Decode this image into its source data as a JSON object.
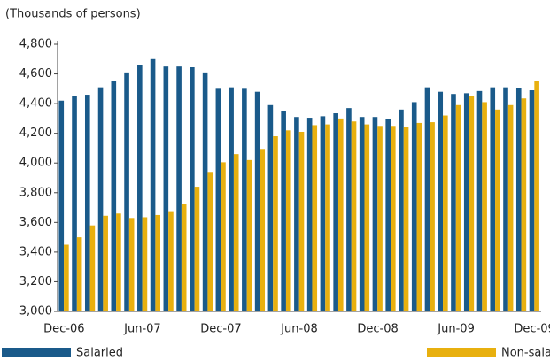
{
  "chart_data": {
    "type": "bar",
    "title": "(Thousands of persons)",
    "categories": [
      "Dec-06",
      null,
      null,
      null,
      null,
      null,
      "Jun-07",
      null,
      null,
      null,
      null,
      null,
      "Dec-07",
      null,
      null,
      null,
      null,
      null,
      "Jun-08",
      null,
      null,
      null,
      null,
      null,
      "Dec-08",
      null,
      null,
      null,
      null,
      null,
      "Jun-09",
      null,
      null,
      null,
      null,
      null,
      "Dec-09"
    ],
    "series": [
      {
        "name": "Salaried",
        "color": "#1a5a8a",
        "values": [
          4420,
          4450,
          4460,
          4510,
          4550,
          4610,
          4660,
          4700,
          4650,
          4650,
          4645,
          4610,
          4500,
          4510,
          4500,
          4480,
          4390,
          4350,
          4310,
          4305,
          4315,
          4335,
          4370,
          4310,
          4310,
          4295,
          4360,
          4410,
          4510,
          4480,
          4465,
          4470,
          4485,
          4510,
          4510,
          4505,
          4490
        ]
      },
      {
        "name": "Non-salaried",
        "color": "#e8b00f",
        "values": [
          3450,
          3500,
          3580,
          3645,
          3660,
          3630,
          3635,
          3650,
          3670,
          3725,
          3840,
          3940,
          4005,
          4060,
          4020,
          4095,
          4180,
          4220,
          4210,
          4255,
          4260,
          4300,
          4280,
          4260,
          4250,
          4250,
          4240,
          4270,
          4275,
          4320,
          4390,
          4450,
          4410,
          4360,
          4390,
          4435,
          4555
        ]
      }
    ],
    "ylim": [
      3000,
      4800
    ],
    "yticks": [
      {
        "value": 3000,
        "label": "3,000"
      },
      {
        "value": 3200,
        "label": "3,200"
      },
      {
        "value": 3400,
        "label": "3,400"
      },
      {
        "value": 3600,
        "label": "3,600"
      },
      {
        "value": 3800,
        "label": "3,800"
      },
      {
        "value": 4000,
        "label": "4,000"
      },
      {
        "value": 4200,
        "label": "4,200"
      },
      {
        "value": 4400,
        "label": "4,400"
      },
      {
        "value": 4600,
        "label": "4,600"
      },
      {
        "value": 4800,
        "label": "4,800"
      }
    ],
    "grid": false,
    "legend": "bottom"
  }
}
